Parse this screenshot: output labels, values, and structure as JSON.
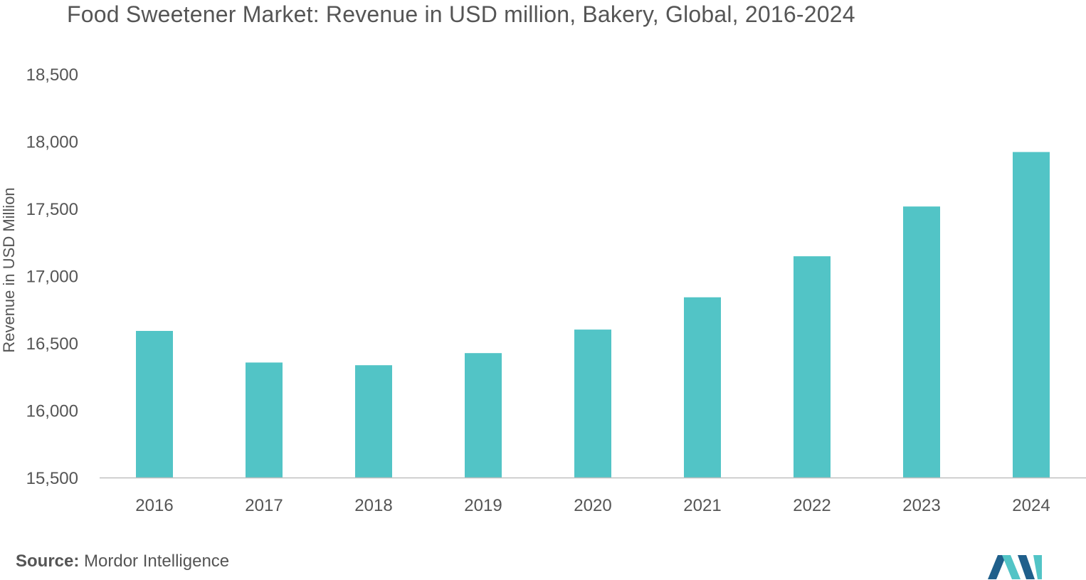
{
  "chart_data": {
    "type": "bar",
    "title": "Food Sweetener Market: Revenue in USD million, Bakery, Global, 2016-2024",
    "xlabel": "",
    "ylabel": "Revenue in USD Million",
    "categories": [
      "2016",
      "2017",
      "2018",
      "2019",
      "2020",
      "2021",
      "2022",
      "2023",
      "2024"
    ],
    "values": [
      16590,
      16355,
      16335,
      16425,
      16600,
      16840,
      17145,
      17515,
      17920
    ],
    "ylim": [
      15500,
      18500
    ],
    "yticks": [
      15500,
      16000,
      16500,
      17000,
      17500,
      18000,
      18500
    ],
    "ytick_labels": [
      "15,500",
      "16,000",
      "16,500",
      "17,000",
      "17,500",
      "18,000",
      "18,500"
    ],
    "grid": false,
    "bar_color": "#52c4c6"
  },
  "source": {
    "label": "Source:",
    "text": "Mordor Intelligence"
  },
  "colors": {
    "text": "#555555",
    "axis": "#bfbfbf",
    "logo_dark": "#1f5f8b",
    "logo_teal": "#52c4c6"
  },
  "logo": {
    "icon": "mordor-intelligence-logo-icon"
  }
}
